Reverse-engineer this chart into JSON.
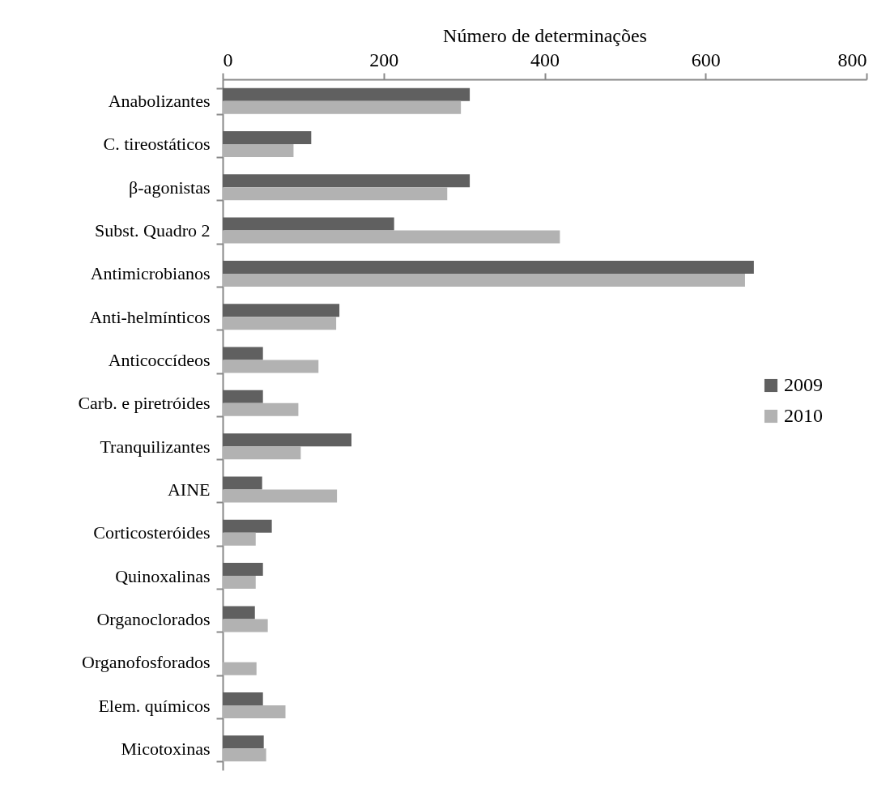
{
  "chart_data": {
    "type": "bar",
    "orientation": "horizontal",
    "xlabel": "Número de determinações",
    "categories": [
      "Anabolizantes",
      "C. tireostáticos",
      "β-agonistas",
      "Subst. Quadro 2",
      "Antimicrobianos",
      "Anti-helmínticos",
      "Anticoccídeos",
      "Carb. e piretróides",
      "Tranquilizantes",
      "AINE",
      "Corticosteróides",
      "Quinoxalinas",
      "Organoclorados",
      "Organofosforados",
      "Elem. químicos",
      "Micotoxinas"
    ],
    "series": [
      {
        "name": "2009",
        "color": "#606060",
        "values": [
          307,
          110,
          307,
          213,
          660,
          145,
          50,
          50,
          160,
          49,
          61,
          50,
          40,
          0,
          50,
          51
        ]
      },
      {
        "name": "2010",
        "color": "#b2b2b2",
        "values": [
          296,
          88,
          279,
          419,
          649,
          141,
          119,
          94,
          97,
          142,
          41,
          41,
          56,
          42,
          78,
          54
        ]
      }
    ],
    "xlim": [
      0,
      800
    ],
    "xticks": [
      0,
      200,
      400,
      600,
      800
    ],
    "grid": false,
    "legend": "right"
  }
}
